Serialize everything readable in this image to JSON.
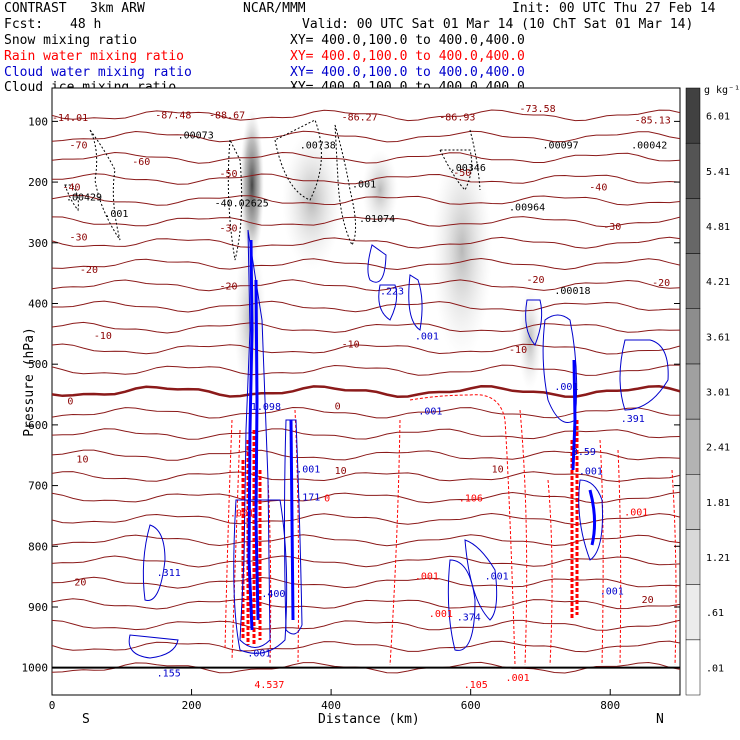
{
  "header": {
    "title": "CONTRAST",
    "model": "3km ARW",
    "org": "NCAR/MMM",
    "init": "Init: 00 UTC Thu 27 Feb 14",
    "fcst_label": "Fcst:",
    "fcst_value": "48 h",
    "valid": "Valid: 00 UTC Sat 01 Mar 14 (10 ChT Sat 01 Mar 14)"
  },
  "legend": [
    {
      "label": "Snow mixing ratio",
      "xy": "XY= 400.0,100.0 to 400.0,400.0",
      "color": "#000000"
    },
    {
      "label": "Rain water mixing ratio",
      "xy": "XY= 400.0,100.0 to 400.0,400.0",
      "color": "#ff0000"
    },
    {
      "label": "Cloud water mixing ratio",
      "xy": "XY= 400.0,100.0 to 400.0,400.0",
      "color": "#0000cc"
    },
    {
      "label": "Cloud ice mixing ratio",
      "xy": "XY= 400.0,100.0 to 400.0,400.0",
      "color": "#000000"
    }
  ],
  "chart_data": {
    "type": "cross-section",
    "xlabel": "Distance (km)",
    "ylabel": "Pressure (hPa)",
    "xlim": [
      0,
      900
    ],
    "ylim": [
      1045,
      45
    ],
    "x_ticks": [
      0,
      200,
      400,
      600,
      800
    ],
    "y_ticks": [
      100,
      200,
      300,
      400,
      500,
      600,
      700,
      800,
      900,
      1000
    ],
    "x_end_labels": [
      "S",
      "N"
    ],
    "colorbar": {
      "unit": "g kg⁻¹",
      "labels": [
        ".01",
        ".61",
        "1.21",
        "1.81",
        "2.41",
        "3.01",
        "3.61",
        "4.21",
        "4.81",
        "5.41",
        "6.01"
      ]
    },
    "temperature_contours": {
      "levels": [
        -70,
        -60,
        -50,
        -40,
        -30,
        -20,
        -10,
        0,
        10,
        20
      ],
      "labels": [
        {
          "text": "-70",
          "x": 25,
          "p": 138
        },
        {
          "text": "-60",
          "x": 115,
          "p": 165
        },
        {
          "text": "-50",
          "x": 240,
          "p": 185
        },
        {
          "text": "-50",
          "x": 575,
          "p": 183
        },
        {
          "text": "-40",
          "x": 15,
          "p": 207
        },
        {
          "text": "-40",
          "x": 770,
          "p": 207
        },
        {
          "text": "-30",
          "x": 25,
          "p": 290
        },
        {
          "text": "-30",
          "x": 240,
          "p": 275
        },
        {
          "text": "-30",
          "x": 790,
          "p": 272
        },
        {
          "text": "-20",
          "x": 40,
          "p": 343
        },
        {
          "text": "-20",
          "x": 240,
          "p": 370
        },
        {
          "text": "-20",
          "x": 680,
          "p": 360
        },
        {
          "text": "-20",
          "x": 860,
          "p": 365
        },
        {
          "text": "-10",
          "x": 60,
          "p": 452
        },
        {
          "text": "-10",
          "x": 415,
          "p": 466
        },
        {
          "text": "-10",
          "x": 655,
          "p": 475
        },
        {
          "text": "0",
          "x": 22,
          "p": 560
        },
        {
          "text": "0",
          "x": 405,
          "p": 568
        },
        {
          "text": "10",
          "x": 35,
          "p": 655
        },
        {
          "text": "10",
          "x": 405,
          "p": 674
        },
        {
          "text": "10",
          "x": 630,
          "p": 672
        },
        {
          "text": "20",
          "x": 32,
          "p": 858
        },
        {
          "text": "20",
          "x": 845,
          "p": 887
        }
      ]
    },
    "field_labels": [
      {
        "text": "-87.48",
        "x": 148,
        "p": 89,
        "color": "#8b0000"
      },
      {
        "text": "-88.67",
        "x": 225,
        "p": 89,
        "color": "#8b0000"
      },
      {
        "text": "-86.27",
        "x": 415,
        "p": 92,
        "color": "#8b0000"
      },
      {
        "text": "-86.93",
        "x": 555,
        "p": 92,
        "color": "#8b0000"
      },
      {
        "text": "-73.58",
        "x": 670,
        "p": 78,
        "color": "#8b0000"
      },
      {
        "text": "-85.13",
        "x": 835,
        "p": 97,
        "color": "#8b0000"
      },
      {
        "text": "-14.01",
        "x": 0,
        "p": 93,
        "color": "#8b0000"
      },
      {
        "text": ".00073",
        "x": 180,
        "p": 122,
        "color": "#000000"
      },
      {
        "text": ".00738",
        "x": 355,
        "p": 138,
        "color": "#000000"
      },
      {
        "text": ".00346",
        "x": 570,
        "p": 175,
        "color": "#000000"
      },
      {
        "text": ".00097",
        "x": 703,
        "p": 138,
        "color": "#000000"
      },
      {
        "text": ".00042",
        "x": 830,
        "p": 138,
        "color": "#000000"
      },
      {
        "text": ".00429",
        "x": 20,
        "p": 224,
        "color": "#000000"
      },
      {
        "text": "-40.02625",
        "x": 233,
        "p": 234,
        "color": "#000000"
      },
      {
        "text": ".01074",
        "x": 440,
        "p": 259,
        "color": "#000000"
      },
      {
        "text": ".00964",
        "x": 655,
        "p": 240,
        "color": "#000000"
      },
      {
        "text": ".00018",
        "x": 720,
        "p": 378,
        "color": "#000000"
      },
      {
        "text": ".001",
        "x": 430,
        "p": 202,
        "color": "#000000"
      },
      {
        "text": ".001",
        "x": 75,
        "p": 251,
        "color": "#000000"
      },
      {
        "text": ".223",
        "x": 470,
        "p": 379,
        "color": "#0000cc"
      },
      {
        "text": ".001",
        "x": 520,
        "p": 453,
        "color": "#0000cc"
      },
      {
        "text": "1.098",
        "x": 285,
        "p": 569,
        "color": "#0000cc"
      },
      {
        "text": ".001",
        "x": 525,
        "p": 576,
        "color": "#0000cc"
      },
      {
        "text": ".001",
        "x": 720,
        "p": 536,
        "color": "#0000cc"
      },
      {
        "text": ".391",
        "x": 815,
        "p": 589,
        "color": "#0000cc"
      },
      {
        "text": "3.59",
        "x": 745,
        "p": 643,
        "color": "#0000cc"
      },
      {
        "text": ".001",
        "x": 755,
        "p": 675,
        "color": "#0000cc"
      },
      {
        "text": ".001",
        "x": 350,
        "p": 672,
        "color": "#0000cc"
      },
      {
        "text": ".171",
        "x": 350,
        "p": 718,
        "color": "#0000cc"
      },
      {
        "text": ".311",
        "x": 150,
        "p": 842,
        "color": "#0000cc"
      },
      {
        "text": ".400",
        "x": 300,
        "p": 877,
        "color": "#0000cc"
      },
      {
        "text": ".001",
        "x": 280,
        "p": 975,
        "color": "#0000cc"
      },
      {
        "text": ".155",
        "x": 150,
        "p": 1008,
        "color": "#0000cc"
      },
      {
        "text": ".374",
        "x": 580,
        "p": 916,
        "color": "#0000cc"
      },
      {
        "text": ".001",
        "x": 620,
        "p": 848,
        "color": "#0000cc"
      },
      {
        "text": ".001",
        "x": 785,
        "p": 873,
        "color": "#0000cc"
      },
      {
        "text": ".001",
        "x": 255,
        "p": 744,
        "color": "#ff0000"
      },
      {
        "text": "0",
        "x": 390,
        "p": 720,
        "color": "#ff0000"
      },
      {
        "text": ".106",
        "x": 583,
        "p": 720,
        "color": "#ff0000"
      },
      {
        "text": ".001",
        "x": 820,
        "p": 743,
        "color": "#ff0000"
      },
      {
        "text": ".001",
        "x": 520,
        "p": 848,
        "color": "#ff0000"
      },
      {
        "text": ".001",
        "x": 540,
        "p": 910,
        "color": "#ff0000"
      },
      {
        "text": ".001",
        "x": 650,
        "p": 1015,
        "color": "#ff0000"
      },
      {
        "text": ".105",
        "x": 590,
        "p": 1027,
        "color": "#ff0000"
      },
      {
        "text": "4.537",
        "x": 290,
        "p": 1027,
        "color": "#ff0000"
      }
    ]
  }
}
